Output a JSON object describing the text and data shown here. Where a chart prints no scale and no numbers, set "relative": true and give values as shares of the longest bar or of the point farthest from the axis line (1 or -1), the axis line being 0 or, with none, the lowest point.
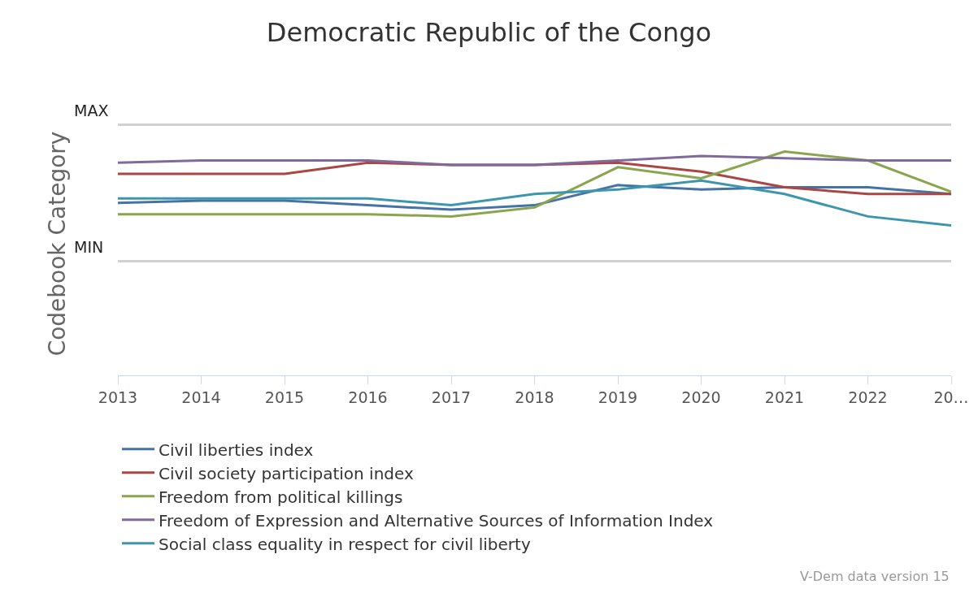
{
  "chart_data": {
    "type": "line",
    "title": "Democratic Republic of the Congo",
    "ylabel": "Codebook Category",
    "categories": [
      "2013",
      "2014",
      "2015",
      "2016",
      "2017",
      "2018",
      "2019",
      "2020",
      "2021",
      "2022",
      "20…"
    ],
    "relative": true,
    "series": [
      {
        "name": "Civil liberties index",
        "color": "#4572a7",
        "values": [
          0.77,
          0.78,
          0.78,
          0.76,
          0.74,
          0.76,
          0.85,
          0.83,
          0.84,
          0.84,
          0.81
        ]
      },
      {
        "name": "Civil society participation index",
        "color": "#aa4643",
        "values": [
          0.9,
          0.9,
          0.9,
          0.95,
          0.94,
          0.94,
          0.95,
          0.91,
          0.84,
          0.81,
          0.81
        ]
      },
      {
        "name": "Freedom from political killings",
        "color": "#89a54e",
        "values": [
          0.72,
          0.72,
          0.72,
          0.72,
          0.71,
          0.75,
          0.93,
          0.88,
          1.0,
          0.96,
          0.82
        ]
      },
      {
        "name": "Freedom of Expression and Alternative Sources of Information Index",
        "color": "#80699b",
        "values": [
          0.95,
          0.96,
          0.96,
          0.96,
          0.94,
          0.94,
          0.96,
          0.98,
          0.97,
          0.96,
          0.96
        ]
      },
      {
        "name": "Social class equality in respect for civil liberty",
        "color": "#3d96ae",
        "values": [
          0.79,
          0.79,
          0.79,
          0.79,
          0.76,
          0.81,
          0.83,
          0.87,
          0.81,
          0.71,
          0.67
        ]
      }
    ],
    "ref_lines": [
      {
        "axis": "y",
        "value": 1.12,
        "label": "MAX",
        "color": "#d0d0d0"
      },
      {
        "axis": "y",
        "value": 0.51,
        "label": "MIN",
        "color": "#d0d0d0"
      }
    ],
    "legend": "bottom",
    "line_style": "solid",
    "annotations": [
      "V-Dem data version 15"
    ]
  }
}
